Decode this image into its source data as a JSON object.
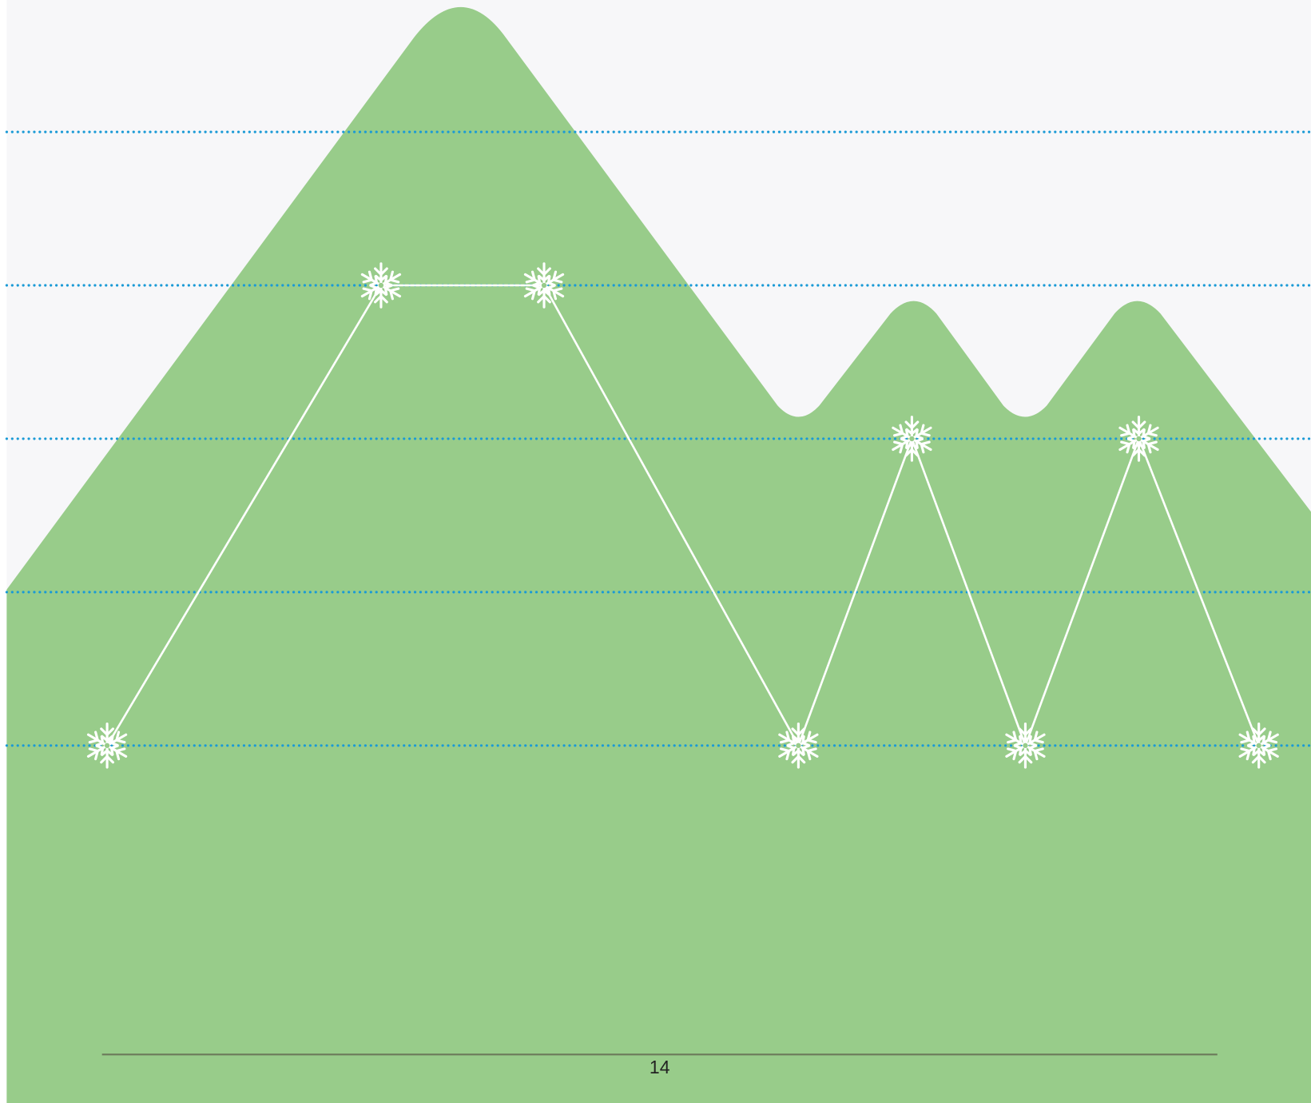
{
  "chart_data": {
    "type": "line",
    "x": [
      7.7,
      28.7,
      41.2,
      60.7,
      69.4,
      78.1,
      86.8,
      96.0
    ],
    "values": [
      1,
      4,
      4,
      1,
      3,
      1,
      3,
      1
    ],
    "xlim": [
      0,
      100
    ],
    "ylim": [
      -1.33,
      5.86
    ],
    "yticks": [
      1,
      2,
      3,
      4,
      5
    ],
    "grid": true,
    "color": "#ffffff",
    "grid_color": "#1a9ad6",
    "xlabel": "14"
  }
}
